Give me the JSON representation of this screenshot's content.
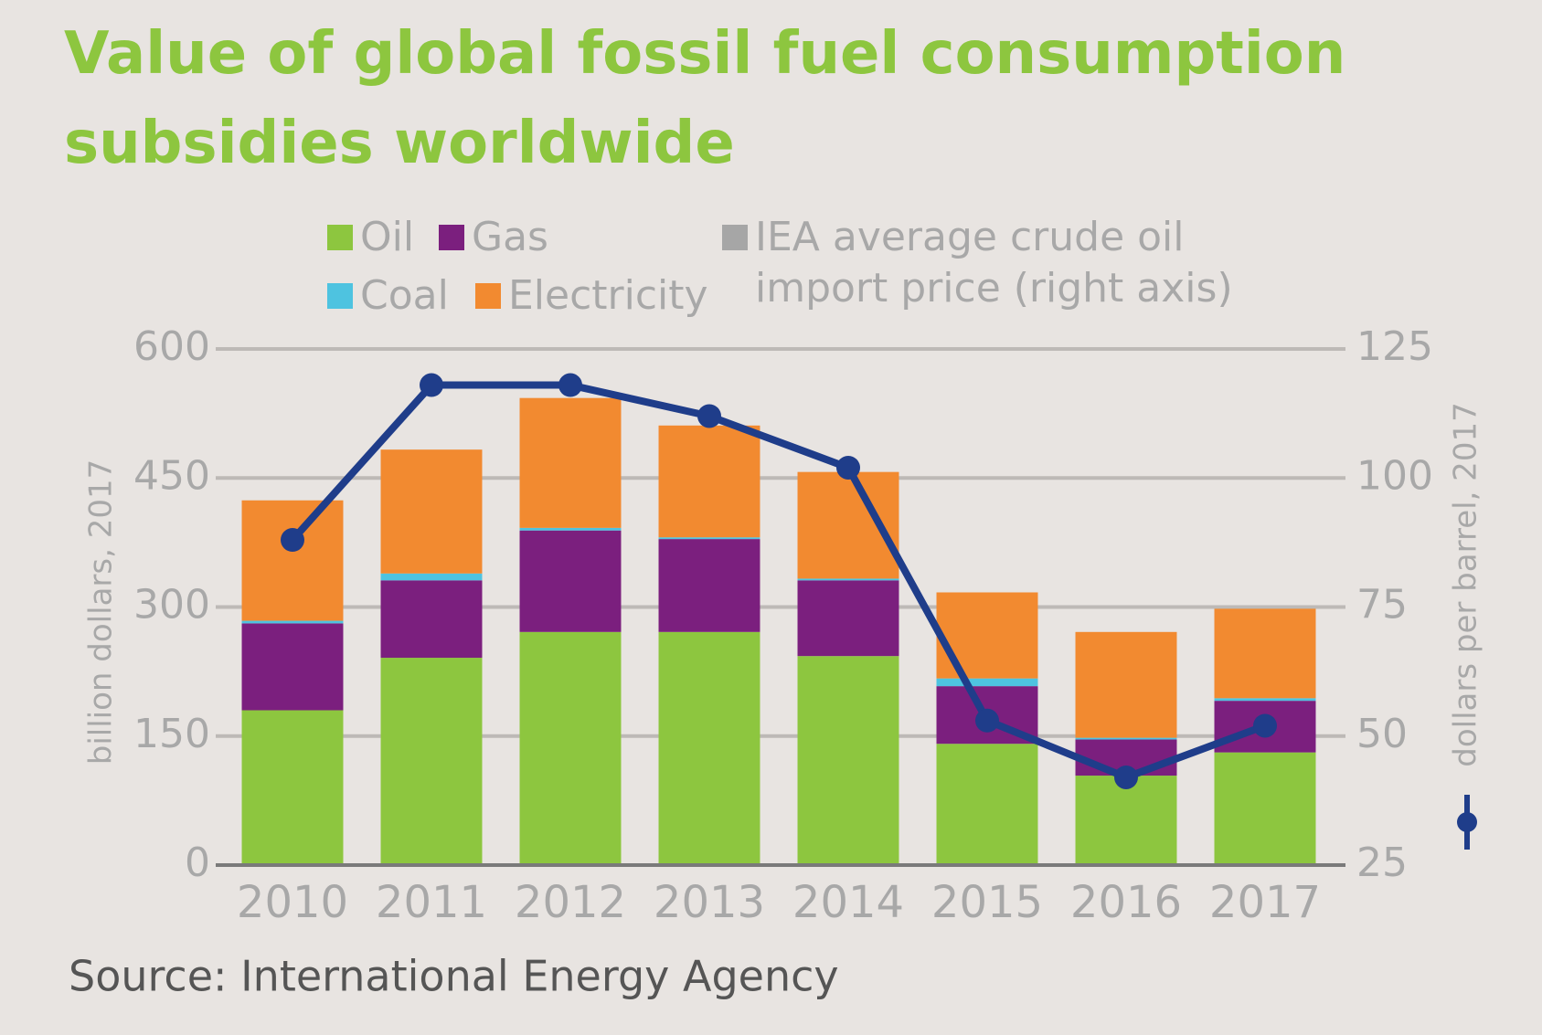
{
  "chart_data": {
    "type": "bar",
    "title": "Value of global fossil fuel consumption subsidies worldwide",
    "stacked": true,
    "categories": [
      "2010",
      "2011",
      "2012",
      "2013",
      "2014",
      "2015",
      "2016",
      "2017"
    ],
    "series": [
      {
        "name": "Oil",
        "color": "#8dc63f",
        "values": [
          180,
          241,
          271,
          271,
          243,
          141,
          104,
          131
        ]
      },
      {
        "name": "Gas",
        "color": "#7b1f7e",
        "values": [
          101,
          90,
          118,
          108,
          88,
          67,
          42,
          60
        ]
      },
      {
        "name": "Coal",
        "color": "#4ec3e0",
        "values": [
          3,
          8,
          3,
          2,
          2,
          9,
          2,
          3
        ]
      },
      {
        "name": "Electricity",
        "color": "#f28a30",
        "values": [
          140,
          144,
          151,
          130,
          124,
          100,
          123,
          104
        ]
      },
      {
        "name": "IEA average crude oil import price (right axis)",
        "type": "line",
        "axis": "y2",
        "color": "#1f3d8a",
        "legend_color": "#a6a6a6",
        "values": [
          88,
          118,
          118,
          112,
          102,
          53,
          42,
          52
        ]
      }
    ],
    "ylabel": "billion dollars, 2017",
    "y2label": "dollars per barrel, 2017",
    "ylim": [
      0,
      600
    ],
    "yticks": [
      0,
      150,
      300,
      450,
      600
    ],
    "y2lim": [
      25,
      125
    ],
    "y2ticks": [
      25,
      50,
      75,
      100,
      125
    ],
    "grid": true,
    "source": "Source: International Energy Agency"
  }
}
